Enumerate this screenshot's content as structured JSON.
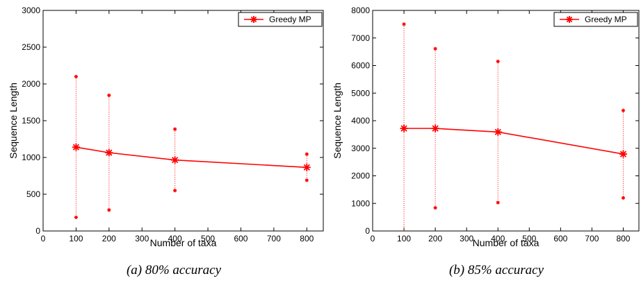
{
  "chart_data": [
    {
      "type": "line",
      "caption": "(a) 80% accuracy",
      "xlabel": "Number of taxa",
      "ylabel": "Sequence Length",
      "xlim": [
        0,
        850
      ],
      "ylim": [
        0,
        3000
      ],
      "xticks": [
        0,
        100,
        200,
        300,
        400,
        500,
        600,
        700,
        800
      ],
      "yticks": [
        0,
        500,
        1000,
        1500,
        2000,
        2500,
        3000
      ],
      "legend_position": "top-right",
      "grid": false,
      "color": "#ff0000",
      "series": [
        {
          "name": "Greedy MP",
          "x": [
            100,
            200,
            400,
            800
          ],
          "y": [
            1140,
            1065,
            965,
            865
          ],
          "error_low": [
            185,
            285,
            550,
            690
          ],
          "error_high": [
            2100,
            1845,
            1385,
            1045
          ]
        }
      ]
    },
    {
      "type": "line",
      "caption": "(b) 85% accuracy",
      "xlabel": "Number of taxa",
      "ylabel": "Sequence Length",
      "xlim": [
        0,
        850
      ],
      "ylim": [
        0,
        8000
      ],
      "xticks": [
        0,
        100,
        200,
        300,
        400,
        500,
        600,
        700,
        800
      ],
      "yticks": [
        0,
        1000,
        2000,
        3000,
        4000,
        5000,
        6000,
        7000,
        8000
      ],
      "legend_position": "top-right",
      "grid": false,
      "color": "#ff0000",
      "series": [
        {
          "name": "Greedy MP",
          "x": [
            100,
            200,
            400,
            800
          ],
          "y": [
            3720,
            3720,
            3590,
            2790
          ],
          "error_low": [
            null,
            840,
            1030,
            1200
          ],
          "error_high": [
            7500,
            6610,
            6150,
            4370
          ]
        }
      ]
    }
  ]
}
